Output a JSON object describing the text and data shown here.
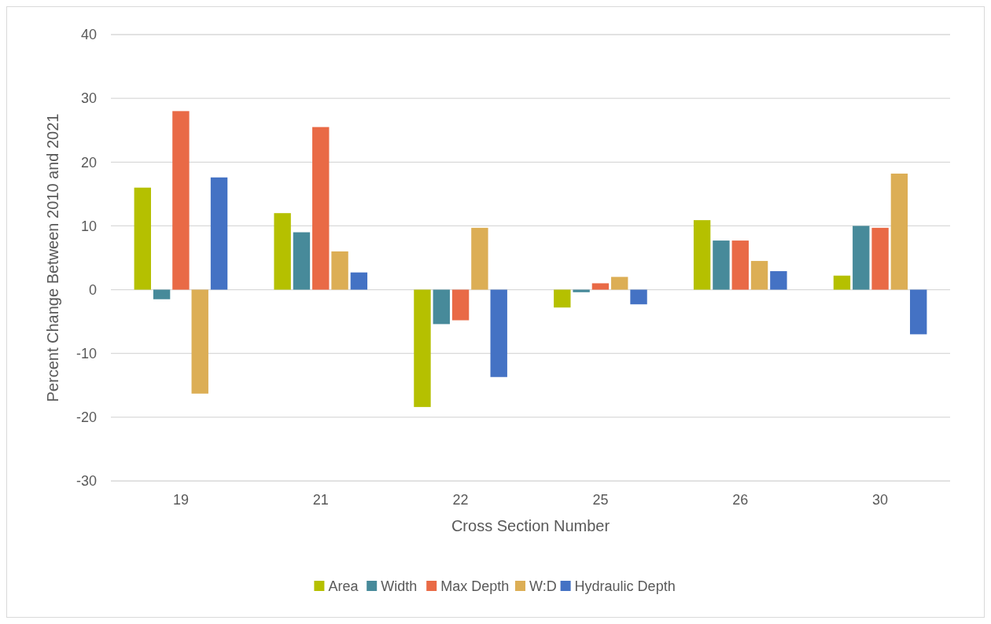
{
  "chart_data": {
    "type": "bar",
    "xlabel": "Cross Section Number",
    "ylabel": "Percent Change Between 2010 and 2021",
    "categories": [
      "19",
      "21",
      "22",
      "25",
      "26",
      "30"
    ],
    "series": [
      {
        "name": "Area",
        "color": "#b5c000",
        "values": [
          16,
          12,
          -18.4,
          -2.8,
          10.9,
          2.2
        ]
      },
      {
        "name": "Width",
        "color": "#478a9a",
        "values": [
          -1.5,
          9,
          -5.4,
          -0.4,
          7.7,
          10
        ]
      },
      {
        "name": "Max Depth",
        "color": "#e96a46",
        "values": [
          28,
          25.5,
          -4.8,
          1,
          7.7,
          9.7
        ]
      },
      {
        "name": "W:D",
        "color": "#dcae55",
        "values": [
          -16.3,
          6,
          9.7,
          2,
          4.5,
          18.2
        ]
      },
      {
        "name": "Hydraulic Depth",
        "color": "#4472c4",
        "values": [
          17.6,
          2.7,
          -13.7,
          -2.3,
          2.9,
          -7
        ]
      }
    ],
    "ylim": [
      -30,
      40
    ],
    "yticks": [
      -30,
      -20,
      -10,
      0,
      10,
      20,
      30,
      40
    ],
    "grid": "y",
    "legend": "bottom"
  }
}
